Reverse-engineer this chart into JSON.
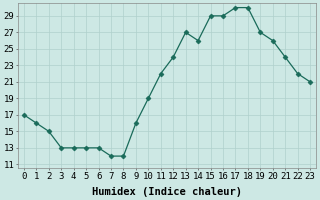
{
  "x": [
    0,
    1,
    2,
    3,
    4,
    5,
    6,
    7,
    8,
    9,
    10,
    11,
    12,
    13,
    14,
    15,
    16,
    17,
    18,
    19,
    20,
    21,
    22,
    23
  ],
  "y": [
    17,
    16,
    15,
    13,
    13,
    13,
    13,
    12,
    12,
    16,
    19,
    22,
    24,
    27,
    26,
    29,
    29,
    30,
    30,
    27,
    26,
    24,
    22,
    21
  ],
  "line_color": "#1a6b5a",
  "marker": "D",
  "marker_size": 2.5,
  "bg_color": "#cde8e4",
  "grid_color": "#b0d0cc",
  "xlabel": "Humidex (Indice chaleur)",
  "xlim": [
    -0.5,
    23.5
  ],
  "ylim": [
    10.5,
    30.5
  ],
  "yticks": [
    11,
    13,
    15,
    17,
    19,
    21,
    23,
    25,
    27,
    29
  ],
  "xtick_labels": [
    "0",
    "1",
    "2",
    "3",
    "4",
    "5",
    "6",
    "7",
    "8",
    "9",
    "10",
    "11",
    "12",
    "13",
    "14",
    "15",
    "16",
    "17",
    "18",
    "19",
    "20",
    "21",
    "22",
    "23"
  ],
  "xlabel_fontsize": 7.5,
  "tick_fontsize": 6.5
}
